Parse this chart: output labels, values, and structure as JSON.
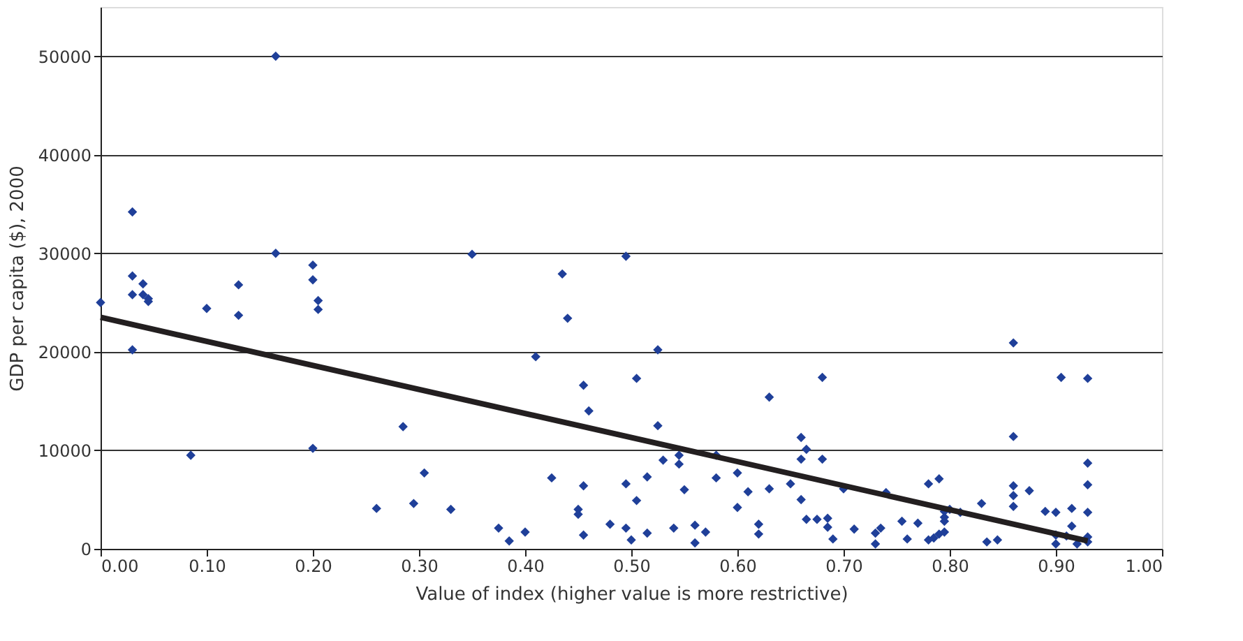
{
  "chart_data": {
    "type": "scatter",
    "xlabel": "Value of index (higher value is more restrictive)",
    "ylabel": "GDP per capita ($), 2000",
    "xlim": [
      0,
      1
    ],
    "ylim": [
      0,
      55000
    ],
    "xticks": [
      {
        "value": 0,
        "label": "0.00"
      },
      {
        "value": 0.1,
        "label": "0.10"
      },
      {
        "value": 0.2,
        "label": "0.20"
      },
      {
        "value": 0.3,
        "label": "0.30"
      },
      {
        "value": 0.4,
        "label": "0.40"
      },
      {
        "value": 0.5,
        "label": "0.50"
      },
      {
        "value": 0.6,
        "label": "0.60"
      },
      {
        "value": 0.7,
        "label": "0.70"
      },
      {
        "value": 0.8,
        "label": "0.80"
      },
      {
        "value": 0.9,
        "label": "0.90"
      },
      {
        "value": 1,
        "label": "1.00"
      }
    ],
    "yticks": [
      0,
      10000,
      20000,
      30000,
      40000,
      50000
    ],
    "grid": "y",
    "series": [
      {
        "marker": "diamond",
        "color": "#1f3f99",
        "x": [
          0.0,
          0.03,
          0.03,
          0.03,
          0.03,
          0.04,
          0.04,
          0.045,
          0.045,
          0.085,
          0.1,
          0.13,
          0.13,
          0.165,
          0.165,
          0.2,
          0.2,
          0.205,
          0.205,
          0.2,
          0.26,
          0.285,
          0.295,
          0.305,
          0.33,
          0.35,
          0.375,
          0.385,
          0.4,
          0.41,
          0.425,
          0.435,
          0.44,
          0.45,
          0.45,
          0.455,
          0.455,
          0.455,
          0.46,
          0.48,
          0.495,
          0.495,
          0.495,
          0.5,
          0.505,
          0.505,
          0.515,
          0.515,
          0.525,
          0.525,
          0.53,
          0.54,
          0.545,
          0.545,
          0.55,
          0.56,
          0.56,
          0.57,
          0.58,
          0.58,
          0.6,
          0.6,
          0.61,
          0.62,
          0.62,
          0.63,
          0.63,
          0.65,
          0.66,
          0.66,
          0.665,
          0.66,
          0.665,
          0.675,
          0.68,
          0.68,
          0.685,
          0.685,
          0.69,
          0.7,
          0.71,
          0.73,
          0.73,
          0.735,
          0.74,
          0.755,
          0.76,
          0.77,
          0.78,
          0.78,
          0.785,
          0.79,
          0.79,
          0.795,
          0.795,
          0.795,
          0.795,
          0.8,
          0.81,
          0.83,
          0.835,
          0.845,
          0.86,
          0.86,
          0.86,
          0.86,
          0.86,
          0.875,
          0.89,
          0.9,
          0.9,
          0.9,
          0.905,
          0.91,
          0.915,
          0.915,
          0.92,
          0.93,
          0.93,
          0.93,
          0.93,
          0.93,
          0.93
        ],
        "values": [
          25000,
          34200,
          27700,
          25800,
          20200,
          26900,
          25800,
          25400,
          25100,
          9500,
          24400,
          26800,
          23700,
          50000,
          30000,
          28800,
          27300,
          25200,
          24300,
          10200,
          4100,
          12400,
          4600,
          7700,
          4000,
          29900,
          2100,
          800,
          1700,
          19500,
          7200,
          27900,
          23400,
          4000,
          3500,
          16600,
          1400,
          6400,
          14000,
          2500,
          29700,
          6600,
          2100,
          900,
          17300,
          4900,
          7300,
          1600,
          20200,
          12500,
          9000,
          2100,
          8600,
          9500,
          6000,
          600,
          2400,
          1700,
          9500,
          7200,
          4200,
          7700,
          5800,
          2500,
          1500,
          15400,
          6100,
          6600,
          11300,
          9100,
          10100,
          5000,
          3000,
          3000,
          17400,
          9100,
          3100,
          2200,
          1000,
          6100,
          2000,
          500,
          1600,
          2100,
          5700,
          2800,
          1000,
          2600,
          6600,
          900,
          1100,
          1500,
          7100,
          1700,
          2800,
          3200,
          3800,
          4000,
          3700,
          4600,
          700,
          900,
          20900,
          11400,
          6400,
          5400,
          4300,
          5900,
          3800,
          3700,
          1400,
          500,
          17400,
          1300,
          4100,
          2300,
          500,
          17300,
          8700,
          6500,
          3700,
          1200,
          700
        ]
      },
      {
        "type": "line",
        "marker": "none",
        "line_style": "solid",
        "color": "#231f20",
        "x": [
          0,
          0.93
        ],
        "values": [
          23500,
          800
        ]
      }
    ]
  }
}
